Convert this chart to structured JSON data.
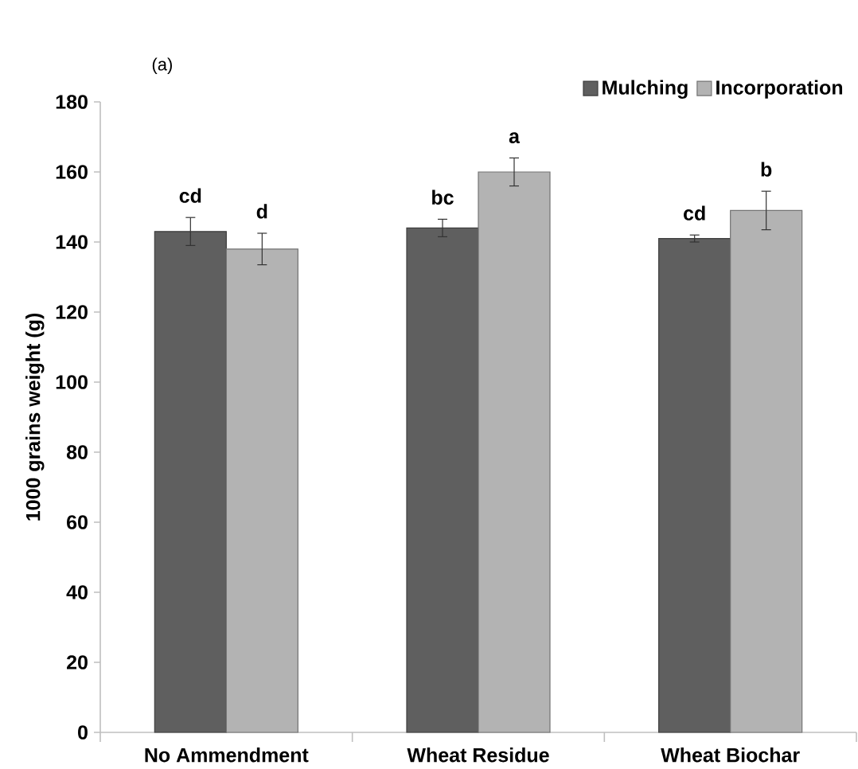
{
  "chart_data": {
    "type": "bar",
    "title": "(a)",
    "ylabel": "1000 grains weight (g)",
    "categories": [
      "No Ammendment",
      "Wheat Residue",
      "Wheat Biochar"
    ],
    "series": [
      {
        "name": "Mulching",
        "color": "#5f5f5f",
        "values": [
          143,
          144,
          141
        ],
        "errors": [
          4,
          2.5,
          1
        ],
        "value_labels": [
          "cd",
          "bc",
          "cd"
        ]
      },
      {
        "name": "Incorporation",
        "color": "#b3b3b3",
        "values": [
          138,
          160,
          149
        ],
        "errors": [
          4.5,
          4,
          5.5
        ],
        "value_labels": [
          "d",
          "a",
          "b"
        ]
      }
    ],
    "ylim": [
      0,
      180
    ],
    "yticks": [
      0,
      20,
      40,
      60,
      80,
      100,
      120,
      140,
      160,
      180
    ],
    "legend": "top right",
    "grid": false
  }
}
